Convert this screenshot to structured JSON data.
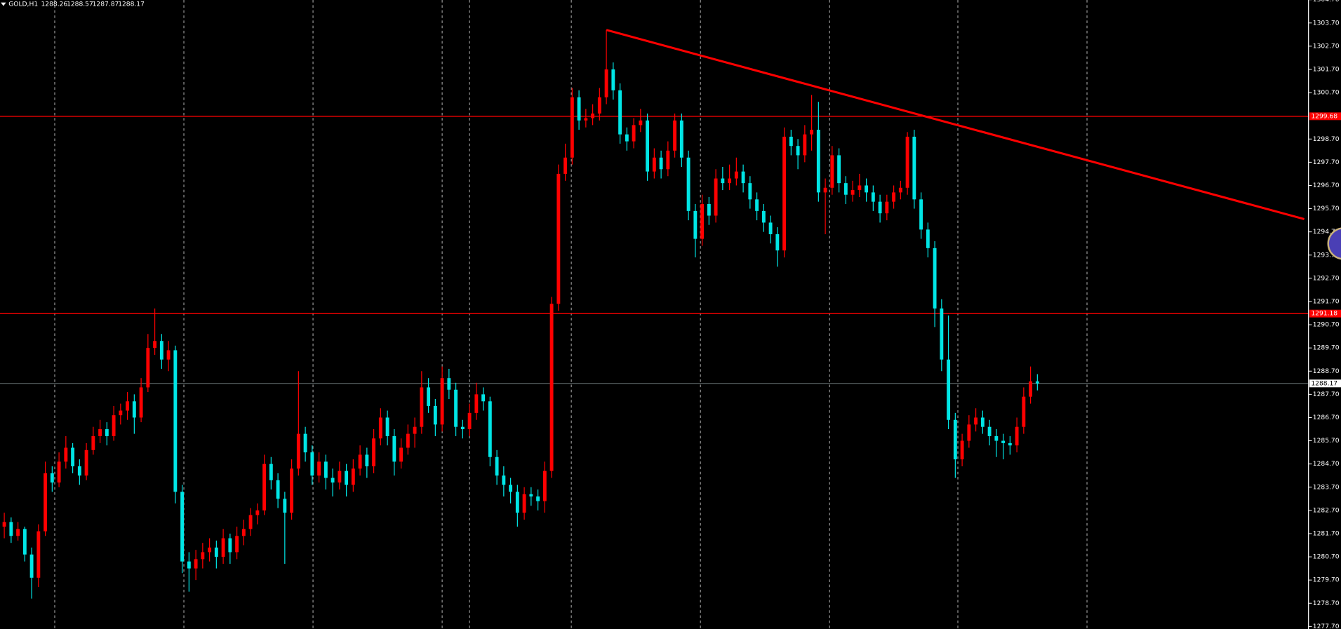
{
  "chart_data": {
    "type": "candlestick",
    "symbol": "GOLD,H1",
    "up_color": "#ff0000",
    "down_color": "#00e5e5",
    "ylim": [
      1277.59,
      1304.69
    ],
    "yticks": [
      {
        "value": 1277.7,
        "label": "1277.70"
      },
      {
        "value": 1278.7,
        "label": "1278.70"
      },
      {
        "value": 1279.7,
        "label": "1279.70"
      },
      {
        "value": 1280.7,
        "label": "1280.70"
      },
      {
        "value": 1281.7,
        "label": "1281.70"
      },
      {
        "value": 1282.7,
        "label": "1282.70"
      },
      {
        "value": 1283.7,
        "label": "1283.70"
      },
      {
        "value": 1284.7,
        "label": "1284.70"
      },
      {
        "value": 1285.7,
        "label": "1285.70"
      },
      {
        "value": 1286.7,
        "label": "1286.70"
      },
      {
        "value": 1287.7,
        "label": "1287.70"
      },
      {
        "value": 1288.7,
        "label": "1288.70"
      },
      {
        "value": 1289.7,
        "label": "1289.70"
      },
      {
        "value": 1290.7,
        "label": "1290.70"
      },
      {
        "value": 1291.7,
        "label": "1291.70"
      },
      {
        "value": 1292.7,
        "label": "1292.70"
      },
      {
        "value": 1293.7,
        "label": "1293.70"
      },
      {
        "value": 1294.7,
        "label": "1294.70"
      },
      {
        "value": 1295.7,
        "label": "1295.70"
      },
      {
        "value": 1296.7,
        "label": "1296.70"
      },
      {
        "value": 1297.7,
        "label": "1297.70"
      },
      {
        "value": 1298.7,
        "label": "1298.70"
      },
      {
        "value": 1300.7,
        "label": "1300.70"
      },
      {
        "value": 1301.7,
        "label": "1301.70"
      },
      {
        "value": 1302.7,
        "label": "1302.70"
      },
      {
        "value": 1303.7,
        "label": "1303.70"
      },
      {
        "value": 1304.7,
        "label": "1304.70"
      }
    ],
    "levels": [
      {
        "value": 1299.68,
        "color": "#ff0000"
      },
      {
        "value": 1291.18,
        "color": "#ff0000"
      }
    ],
    "bid_color": "#7f8c8d",
    "trendline": {
      "start_bar": 88,
      "start_price": 1303.4,
      "end_bar": 190,
      "end_price": 1295.25,
      "color": "#ff0000"
    },
    "ohlc": [
      [
        1282.0,
        1282.6,
        1281.5,
        1282.2
      ],
      [
        1282.2,
        1282.4,
        1281.3,
        1281.6
      ],
      [
        1281.6,
        1282.2,
        1281.4,
        1281.9
      ],
      [
        1281.9,
        1282.0,
        1280.5,
        1280.8
      ],
      [
        1280.8,
        1281.1,
        1278.9,
        1279.8
      ],
      [
        1279.8,
        1282.1,
        1279.4,
        1281.8
      ],
      [
        1281.8,
        1284.8,
        1281.6,
        1284.3
      ],
      [
        1284.3,
        1284.6,
        1283.5,
        1283.9
      ],
      [
        1283.9,
        1285.2,
        1283.7,
        1284.8
      ],
      [
        1284.8,
        1285.9,
        1284.5,
        1285.4
      ],
      [
        1285.4,
        1285.6,
        1284.3,
        1284.6
      ],
      [
        1284.6,
        1284.9,
        1283.8,
        1284.2
      ],
      [
        1284.2,
        1285.6,
        1284.0,
        1285.3
      ],
      [
        1285.3,
        1286.3,
        1285.1,
        1285.9
      ],
      [
        1285.9,
        1286.6,
        1285.6,
        1286.2
      ],
      [
        1286.2,
        1286.5,
        1285.5,
        1285.9
      ],
      [
        1285.9,
        1287.2,
        1285.7,
        1286.8
      ],
      [
        1286.8,
        1287.3,
        1286.4,
        1287.0
      ],
      [
        1287.0,
        1287.8,
        1286.6,
        1287.4
      ],
      [
        1287.4,
        1287.7,
        1286.0,
        1286.7
      ],
      [
        1286.7,
        1288.4,
        1286.5,
        1288.0
      ],
      [
        1288.0,
        1290.3,
        1287.8,
        1289.7
      ],
      [
        1289.7,
        1291.4,
        1289.4,
        1290.0
      ],
      [
        1290.0,
        1290.3,
        1288.8,
        1289.2
      ],
      [
        1289.2,
        1290.0,
        1288.7,
        1289.6
      ],
      [
        1289.6,
        1289.8,
        1283.0,
        1283.5
      ],
      [
        1283.5,
        1283.8,
        1280.0,
        1280.5
      ],
      [
        1280.5,
        1280.9,
        1279.2,
        1280.2
      ],
      [
        1280.2,
        1281.0,
        1279.7,
        1280.6
      ],
      [
        1280.6,
        1281.3,
        1280.2,
        1280.9
      ],
      [
        1280.9,
        1281.5,
        1280.5,
        1281.1
      ],
      [
        1281.1,
        1281.4,
        1280.2,
        1280.7
      ],
      [
        1280.7,
        1281.9,
        1280.4,
        1281.5
      ],
      [
        1281.5,
        1281.7,
        1280.4,
        1280.9
      ],
      [
        1280.9,
        1282.0,
        1280.6,
        1281.6
      ],
      [
        1281.6,
        1282.3,
        1281.2,
        1281.9
      ],
      [
        1281.9,
        1282.8,
        1281.6,
        1282.5
      ],
      [
        1282.5,
        1283.0,
        1282.1,
        1282.7
      ],
      [
        1282.7,
        1285.1,
        1282.5,
        1284.7
      ],
      [
        1284.7,
        1285.0,
        1283.6,
        1284.0
      ],
      [
        1284.0,
        1284.3,
        1282.8,
        1283.2
      ],
      [
        1283.2,
        1283.5,
        1280.4,
        1282.6
      ],
      [
        1282.6,
        1284.9,
        1282.3,
        1284.5
      ],
      [
        1284.5,
        1288.7,
        1284.2,
        1286.0
      ],
      [
        1286.0,
        1286.3,
        1284.8,
        1285.2
      ],
      [
        1285.2,
        1285.5,
        1283.8,
        1284.2
      ],
      [
        1284.2,
        1285.2,
        1283.9,
        1284.8
      ],
      [
        1284.8,
        1285.1,
        1283.6,
        1284.1
      ],
      [
        1284.1,
        1284.5,
        1283.3,
        1283.9
      ],
      [
        1283.9,
        1284.8,
        1283.6,
        1284.4
      ],
      [
        1284.4,
        1284.7,
        1283.3,
        1283.8
      ],
      [
        1283.8,
        1284.9,
        1283.5,
        1284.5
      ],
      [
        1284.5,
        1285.5,
        1284.2,
        1285.1
      ],
      [
        1285.1,
        1285.4,
        1284.1,
        1284.6
      ],
      [
        1284.6,
        1286.2,
        1284.3,
        1285.8
      ],
      [
        1285.8,
        1287.1,
        1285.5,
        1286.7
      ],
      [
        1286.7,
        1287.0,
        1285.5,
        1285.9
      ],
      [
        1285.9,
        1286.2,
        1284.2,
        1284.8
      ],
      [
        1284.8,
        1285.8,
        1284.5,
        1285.4
      ],
      [
        1285.4,
        1286.4,
        1285.1,
        1286.0
      ],
      [
        1286.0,
        1286.7,
        1285.4,
        1286.3
      ],
      [
        1286.3,
        1288.7,
        1286.0,
        1288.0
      ],
      [
        1288.0,
        1288.4,
        1286.9,
        1287.2
      ],
      [
        1287.2,
        1287.5,
        1285.9,
        1286.4
      ],
      [
        1286.4,
        1288.9,
        1286.1,
        1288.4
      ],
      [
        1288.4,
        1288.8,
        1287.5,
        1287.9
      ],
      [
        1287.9,
        1288.2,
        1285.9,
        1286.3
      ],
      [
        1286.3,
        1286.6,
        1285.8,
        1286.2
      ],
      [
        1286.2,
        1287.3,
        1285.9,
        1286.9
      ],
      [
        1286.9,
        1288.2,
        1286.6,
        1287.7
      ],
      [
        1287.7,
        1288.0,
        1287.0,
        1287.4
      ],
      [
        1287.4,
        1287.6,
        1284.6,
        1285.0
      ],
      [
        1285.0,
        1285.3,
        1283.8,
        1284.2
      ],
      [
        1284.2,
        1284.6,
        1283.3,
        1283.8
      ],
      [
        1283.8,
        1284.1,
        1283.0,
        1283.5
      ],
      [
        1283.5,
        1283.8,
        1282.0,
        1282.6
      ],
      [
        1282.6,
        1283.7,
        1282.3,
        1283.4
      ],
      [
        1283.4,
        1283.7,
        1282.9,
        1283.3
      ],
      [
        1283.3,
        1283.6,
        1282.7,
        1283.1
      ],
      [
        1283.1,
        1284.8,
        1282.6,
        1284.4
      ],
      [
        1284.4,
        1291.9,
        1284.1,
        1291.6
      ],
      [
        1291.6,
        1297.6,
        1291.3,
        1297.2
      ],
      [
        1297.2,
        1298.5,
        1296.9,
        1297.9
      ],
      [
        1297.9,
        1300.9,
        1297.6,
        1300.5
      ],
      [
        1300.5,
        1300.8,
        1299.1,
        1299.5
      ],
      [
        1299.5,
        1300.0,
        1299.2,
        1299.6
      ],
      [
        1299.6,
        1300.2,
        1299.3,
        1299.8
      ],
      [
        1299.8,
        1300.9,
        1299.5,
        1300.5
      ],
      [
        1300.5,
        1303.4,
        1300.2,
        1301.7
      ],
      [
        1301.7,
        1302.0,
        1300.4,
        1300.8
      ],
      [
        1300.8,
        1301.1,
        1298.5,
        1298.9
      ],
      [
        1298.9,
        1299.2,
        1298.2,
        1298.6
      ],
      [
        1298.6,
        1299.6,
        1298.3,
        1299.3
      ],
      [
        1299.3,
        1300.0,
        1299.0,
        1299.5
      ],
      [
        1299.5,
        1299.8,
        1296.9,
        1297.3
      ],
      [
        1297.3,
        1298.3,
        1297.0,
        1297.9
      ],
      [
        1297.9,
        1298.2,
        1297.0,
        1297.4
      ],
      [
        1297.4,
        1298.6,
        1297.1,
        1298.2
      ],
      [
        1298.2,
        1299.8,
        1297.9,
        1299.5
      ],
      [
        1299.5,
        1299.8,
        1297.5,
        1297.9
      ],
      [
        1297.9,
        1298.2,
        1295.2,
        1295.6
      ],
      [
        1295.6,
        1295.9,
        1293.6,
        1294.4
      ],
      [
        1294.4,
        1296.3,
        1294.1,
        1295.9
      ],
      [
        1295.9,
        1296.2,
        1295.0,
        1295.4
      ],
      [
        1295.4,
        1297.4,
        1295.1,
        1297.0
      ],
      [
        1297.0,
        1297.5,
        1296.5,
        1296.8
      ],
      [
        1296.8,
        1297.6,
        1296.5,
        1297.0
      ],
      [
        1297.0,
        1297.9,
        1296.7,
        1297.3
      ],
      [
        1297.3,
        1297.6,
        1296.4,
        1296.8
      ],
      [
        1296.8,
        1297.1,
        1295.7,
        1296.1
      ],
      [
        1296.1,
        1296.4,
        1295.2,
        1295.6
      ],
      [
        1295.6,
        1295.9,
        1294.7,
        1295.1
      ],
      [
        1295.1,
        1295.4,
        1294.2,
        1294.6
      ],
      [
        1294.6,
        1294.9,
        1293.2,
        1293.9
      ],
      [
        1293.9,
        1299.2,
        1293.6,
        1298.8
      ],
      [
        1298.8,
        1299.1,
        1298.0,
        1298.4
      ],
      [
        1298.4,
        1298.7,
        1297.4,
        1298.0
      ],
      [
        1298.0,
        1299.3,
        1297.7,
        1298.9
      ],
      [
        1298.9,
        1300.6,
        1298.2,
        1299.1
      ],
      [
        1299.1,
        1300.3,
        1296.0,
        1296.4
      ],
      [
        1296.4,
        1297.0,
        1294.6,
        1296.6
      ],
      [
        1296.6,
        1298.4,
        1296.3,
        1298.0
      ],
      [
        1298.0,
        1298.3,
        1296.4,
        1296.8
      ],
      [
        1296.8,
        1297.1,
        1295.9,
        1296.3
      ],
      [
        1296.3,
        1296.9,
        1296.0,
        1296.5
      ],
      [
        1296.5,
        1297.2,
        1296.2,
        1296.7
      ],
      [
        1296.7,
        1297.0,
        1296.0,
        1296.4
      ],
      [
        1296.4,
        1296.7,
        1295.6,
        1296.0
      ],
      [
        1296.0,
        1296.3,
        1295.1,
        1295.5
      ],
      [
        1295.5,
        1296.3,
        1295.2,
        1296.0
      ],
      [
        1296.0,
        1296.7,
        1295.7,
        1296.4
      ],
      [
        1296.4,
        1296.9,
        1296.1,
        1296.6
      ],
      [
        1296.6,
        1299.0,
        1296.3,
        1298.8
      ],
      [
        1298.8,
        1299.1,
        1295.7,
        1296.1
      ],
      [
        1296.1,
        1296.4,
        1294.4,
        1294.8
      ],
      [
        1294.8,
        1295.1,
        1293.6,
        1294.0
      ],
      [
        1294.0,
        1294.3,
        1290.6,
        1291.4
      ],
      [
        1291.4,
        1291.8,
        1288.7,
        1289.2
      ],
      [
        1289.2,
        1291.1,
        1286.2,
        1286.6
      ],
      [
        1286.6,
        1286.9,
        1284.1,
        1284.9
      ],
      [
        1284.9,
        1286.0,
        1284.6,
        1285.7
      ],
      [
        1285.7,
        1286.8,
        1285.4,
        1286.4
      ],
      [
        1286.4,
        1287.1,
        1286.1,
        1286.7
      ],
      [
        1286.7,
        1287.0,
        1286.0,
        1286.3
      ],
      [
        1286.3,
        1286.6,
        1285.5,
        1285.9
      ],
      [
        1285.9,
        1286.2,
        1285.0,
        1285.7
      ],
      [
        1285.7,
        1286.0,
        1284.9,
        1285.6
      ],
      [
        1285.6,
        1285.9,
        1285.1,
        1285.5
      ],
      [
        1285.5,
        1286.7,
        1285.2,
        1286.3
      ],
      [
        1286.3,
        1288.0,
        1286.0,
        1287.6
      ],
      [
        1287.6,
        1288.9,
        1287.3,
        1288.26
      ],
      [
        1288.26,
        1288.57,
        1287.87,
        1288.17
      ]
    ]
  }
}
